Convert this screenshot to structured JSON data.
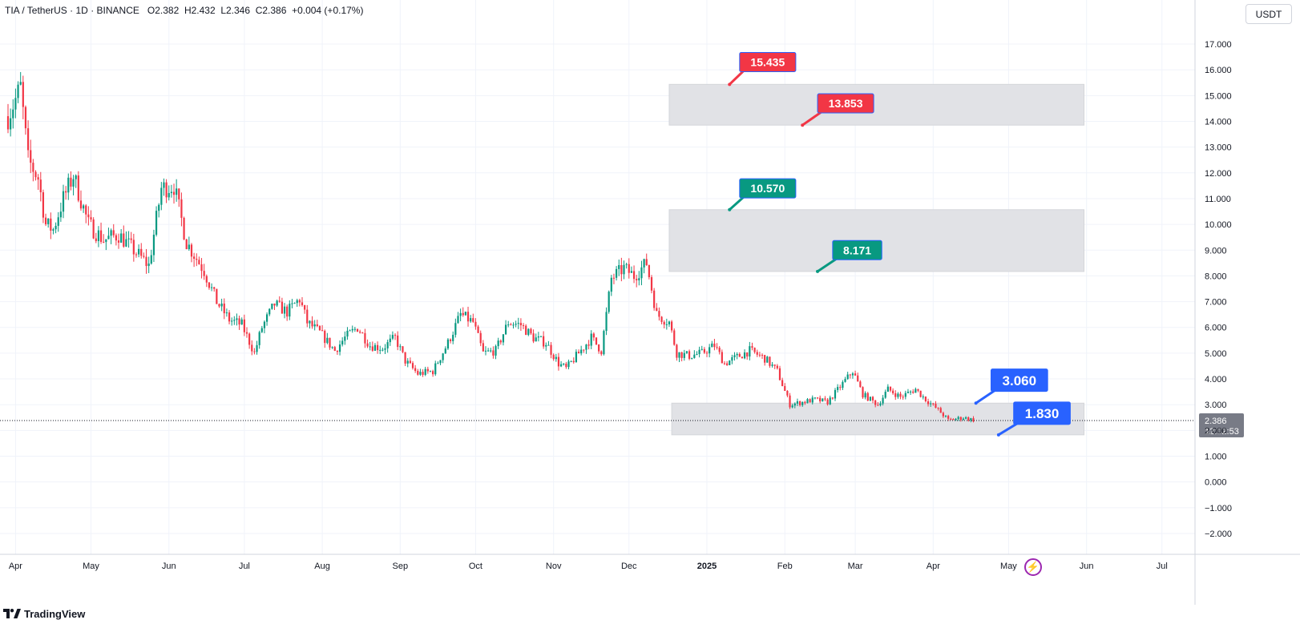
{
  "header": {
    "symbol": "TIA / TetherUS",
    "interval": "1D",
    "exchange": "BINANCE",
    "open": "O2.382",
    "high": "H2.432",
    "low": "L2.346",
    "close": "C2.386",
    "change": "+0.004 (+0.17%)"
  },
  "currency": "USDT",
  "footer": {
    "brand": "TradingView",
    "logo_icon": "tradingview-logo-icon"
  },
  "colors": {
    "up": "#089981",
    "down": "#f23645",
    "zone": "#e1e2e6",
    "red_label": "#f23645",
    "green_label": "#089981",
    "blue_label": "#2962ff",
    "grid": "#f0f3fa",
    "text": "#131722",
    "price_tag": "#787b86"
  },
  "chart_data": {
    "type": "candlestick",
    "y_axis": {
      "ylim": [
        -2.6,
        17.6
      ],
      "ticks": [
        "17.000",
        "16.000",
        "15.000",
        "14.000",
        "13.000",
        "12.000",
        "11.000",
        "10.000",
        "9.000",
        "8.000",
        "7.000",
        "6.000",
        "5.000",
        "4.000",
        "3.000",
        "2.000",
        "1.000",
        "0.000",
        "−1.000",
        "−2.000"
      ],
      "tick_values": [
        17,
        16,
        15,
        14,
        13,
        12,
        11,
        10,
        9,
        8,
        7,
        6,
        5,
        4,
        3,
        2,
        1,
        0,
        -1,
        -2
      ]
    },
    "x_axis": {
      "start_date": "2024-03-29",
      "end_date": "2025-07-10",
      "ticks": [
        {
          "label": "Apr",
          "date": "2024-04-01"
        },
        {
          "label": "May",
          "date": "2024-05-01"
        },
        {
          "label": "Jun",
          "date": "2024-06-01"
        },
        {
          "label": "Jul",
          "date": "2024-07-01"
        },
        {
          "label": "Aug",
          "date": "2024-08-01"
        },
        {
          "label": "Sep",
          "date": "2024-09-01"
        },
        {
          "label": "Oct",
          "date": "2024-10-01"
        },
        {
          "label": "Nov",
          "date": "2024-11-01"
        },
        {
          "label": "Dec",
          "date": "2024-12-01"
        },
        {
          "label": "2025",
          "date": "2025-01-01",
          "bold": true
        },
        {
          "label": "Feb",
          "date": "2025-02-01"
        },
        {
          "label": "Mar",
          "date": "2025-03-01"
        },
        {
          "label": "Apr",
          "date": "2025-04-01"
        },
        {
          "label": "May",
          "date": "2025-05-01"
        },
        {
          "label": "Jun",
          "date": "2025-06-01"
        },
        {
          "label": "Jul",
          "date": "2025-07-01"
        }
      ]
    },
    "price_path": [
      [
        "2024-03-29",
        14.2
      ],
      [
        "2024-04-03",
        15.3
      ],
      [
        "2024-04-06",
        12.5
      ],
      [
        "2024-04-10",
        11.8
      ],
      [
        "2024-04-13",
        10.0
      ],
      [
        "2024-04-16",
        9.8
      ],
      [
        "2024-04-20",
        11.0
      ],
      [
        "2024-04-24",
        11.9
      ],
      [
        "2024-04-30",
        10.0
      ],
      [
        "2024-05-06",
        9.4
      ],
      [
        "2024-05-12",
        9.6
      ],
      [
        "2024-05-18",
        9.0
      ],
      [
        "2024-05-24",
        8.4
      ],
      [
        "2024-05-29",
        11.4
      ],
      [
        "2024-06-03",
        11.5
      ],
      [
        "2024-06-08",
        9.3
      ],
      [
        "2024-06-15",
        8.2
      ],
      [
        "2024-06-20",
        7.0
      ],
      [
        "2024-06-25",
        6.3
      ],
      [
        "2024-06-30",
        6.1
      ],
      [
        "2024-07-05",
        5.0
      ],
      [
        "2024-07-08",
        6.0
      ],
      [
        "2024-07-13",
        6.9
      ],
      [
        "2024-07-18",
        6.6
      ],
      [
        "2024-07-23",
        7.1
      ],
      [
        "2024-07-26",
        6.2
      ],
      [
        "2024-07-31",
        5.8
      ],
      [
        "2024-08-06",
        5.1
      ],
      [
        "2024-08-10",
        5.6
      ],
      [
        "2024-08-15",
        6.0
      ],
      [
        "2024-08-20",
        5.3
      ],
      [
        "2024-08-25",
        5.2
      ],
      [
        "2024-08-30",
        5.6
      ],
      [
        "2024-09-03",
        4.7
      ],
      [
        "2024-09-08",
        4.2
      ],
      [
        "2024-09-14",
        4.3
      ],
      [
        "2024-09-20",
        5.4
      ],
      [
        "2024-09-25",
        6.5
      ],
      [
        "2024-09-30",
        6.2
      ],
      [
        "2024-10-04",
        5.0
      ],
      [
        "2024-10-09",
        5.1
      ],
      [
        "2024-10-14",
        6.2
      ],
      [
        "2024-10-19",
        6.1
      ],
      [
        "2024-10-24",
        5.6
      ],
      [
        "2024-10-29",
        5.4
      ],
      [
        "2024-11-03",
        4.6
      ],
      [
        "2024-11-06",
        4.4
      ],
      [
        "2024-11-11",
        5.0
      ],
      [
        "2024-11-16",
        5.6
      ],
      [
        "2024-11-20",
        5.1
      ],
      [
        "2024-11-24",
        7.9
      ],
      [
        "2024-11-29",
        8.3
      ],
      [
        "2024-12-03",
        8.0
      ],
      [
        "2024-12-08",
        8.5
      ],
      [
        "2024-12-12",
        6.5
      ],
      [
        "2024-12-17",
        6.2
      ],
      [
        "2024-12-20",
        5.0
      ],
      [
        "2024-12-25",
        4.9
      ],
      [
        "2024-12-30",
        5.0
      ],
      [
        "2025-01-04",
        5.3
      ],
      [
        "2025-01-08",
        4.6
      ],
      [
        "2025-01-14",
        4.9
      ],
      [
        "2025-01-18",
        5.1
      ],
      [
        "2025-01-24",
        4.8
      ],
      [
        "2025-01-29",
        4.3
      ],
      [
        "2025-02-03",
        3.0
      ],
      [
        "2025-02-08",
        3.1
      ],
      [
        "2025-02-13",
        3.2
      ],
      [
        "2025-02-18",
        3.1
      ],
      [
        "2025-02-23",
        3.7
      ],
      [
        "2025-02-28",
        4.3
      ],
      [
        "2025-03-04",
        3.4
      ],
      [
        "2025-03-10",
        3.0
      ],
      [
        "2025-03-14",
        3.6
      ],
      [
        "2025-03-19",
        3.3
      ],
      [
        "2025-03-25",
        3.6
      ],
      [
        "2025-03-29",
        3.2
      ],
      [
        "2025-04-03",
        2.8
      ],
      [
        "2025-04-07",
        2.4
      ],
      [
        "2025-04-13",
        2.5
      ],
      [
        "2025-04-18",
        2.386
      ]
    ],
    "last_price": {
      "value": 2.386,
      "label": "2.386",
      "countdown": "12:02:53"
    },
    "zones": [
      {
        "name": "upper-zone",
        "from_date": "2024-12-17",
        "to_date": "2025-05-31",
        "low": 13.853,
        "high": 15.435
      },
      {
        "name": "middle-zone",
        "from_date": "2024-12-17",
        "to_date": "2025-05-31",
        "low": 8.171,
        "high": 10.57
      },
      {
        "name": "lower-zone",
        "from_date": "2024-12-18",
        "to_date": "2025-05-31",
        "low": 1.83,
        "high": 3.06
      }
    ],
    "callouts": [
      {
        "label": "15.435",
        "color": "red",
        "box_date": "2025-01-14",
        "box_price": 16.3,
        "tip_date": "2025-01-10",
        "tip_price": 15.435
      },
      {
        "label": "13.853",
        "color": "red",
        "box_date": "2025-02-14",
        "box_price": 14.7,
        "tip_date": "2025-02-08",
        "tip_price": 13.853
      },
      {
        "label": "10.570",
        "color": "green",
        "box_date": "2025-01-14",
        "box_price": 11.4,
        "tip_date": "2025-01-10",
        "tip_price": 10.57
      },
      {
        "label": "8.171",
        "color": "green",
        "box_date": "2025-02-20",
        "box_price": 9.0,
        "tip_date": "2025-02-14",
        "tip_price": 8.171
      },
      {
        "label": "3.060",
        "color": "blue",
        "box_date": "2025-04-24",
        "box_price": 3.95,
        "tip_date": "2025-04-18",
        "tip_price": 3.06
      },
      {
        "label": "1.830",
        "color": "blue",
        "box_date": "2025-05-03",
        "box_price": 2.67,
        "tip_date": "2025-04-27",
        "tip_price": 1.83
      }
    ]
  }
}
